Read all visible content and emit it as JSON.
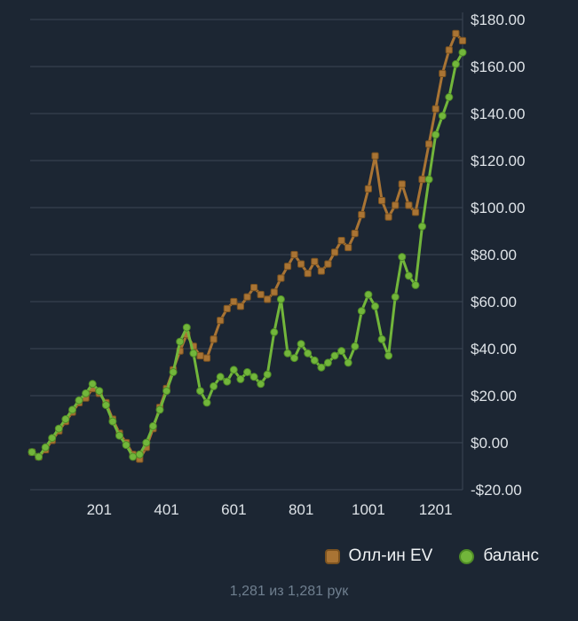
{
  "chart_data": {
    "type": "line",
    "xlim": [
      1,
      1281
    ],
    "ylim": [
      -20,
      180
    ],
    "grid": true,
    "legend_position": "bottom",
    "grid_color": "#3b4754",
    "axis_line_color": "#3b4754",
    "axis_text_color": "#dde2e7",
    "xticks": [
      201,
      401,
      601,
      801,
      1001,
      1201
    ],
    "yticks": [
      180,
      160,
      140,
      120,
      100,
      80,
      60,
      40,
      20,
      0,
      -20
    ],
    "ytick_labels": [
      "$180.00",
      "$160.00",
      "$140.00",
      "$120.00",
      "$100.00",
      "$80.00",
      "$60.00",
      "$40.00",
      "$20.00",
      "$0.00",
      "-$20.00"
    ],
    "x": [
      1,
      21,
      41,
      61,
      81,
      101,
      121,
      141,
      161,
      181,
      201,
      221,
      241,
      261,
      281,
      301,
      321,
      341,
      361,
      381,
      401,
      421,
      441,
      461,
      481,
      501,
      521,
      541,
      561,
      581,
      601,
      621,
      641,
      661,
      681,
      701,
      721,
      741,
      761,
      781,
      801,
      821,
      841,
      861,
      881,
      901,
      921,
      941,
      961,
      981,
      1001,
      1021,
      1041,
      1061,
      1081,
      1101,
      1121,
      1141,
      1161,
      1181,
      1201,
      1221,
      1241,
      1261,
      1281
    ],
    "series": [
      {
        "name": "Олл-ин EV",
        "color": "#a97434",
        "edge": "#7c5320",
        "marker": "square",
        "values": [
          -4,
          -6,
          -3,
          1,
          5,
          9,
          13,
          17,
          19,
          23,
          21,
          17,
          10,
          4,
          0,
          -5,
          -7,
          -2,
          6,
          15,
          23,
          31,
          39,
          46,
          41,
          37,
          36,
          44,
          52,
          57,
          60,
          58,
          62,
          66,
          63,
          61,
          64,
          70,
          75,
          80,
          76,
          72,
          77,
          73,
          76,
          81,
          86,
          83,
          89,
          97,
          108,
          122,
          103,
          96,
          101,
          110,
          101,
          98,
          112,
          127,
          142,
          157,
          167,
          174,
          171
        ]
      },
      {
        "name": "баланс",
        "color": "#72b63b",
        "edge": "#4e8b26",
        "marker": "circle",
        "values": [
          -4,
          -6,
          -2,
          2,
          6,
          10,
          14,
          18,
          21,
          25,
          22,
          16,
          9,
          3,
          -1,
          -6,
          -5,
          0,
          7,
          14,
          22,
          30,
          43,
          49,
          38,
          22,
          17,
          24,
          28,
          26,
          31,
          27,
          30,
          28,
          25,
          29,
          47,
          61,
          38,
          36,
          42,
          38,
          35,
          32,
          34,
          37,
          39,
          34,
          41,
          56,
          63,
          58,
          44,
          37,
          62,
          79,
          71,
          67,
          92,
          112,
          131,
          139,
          147,
          161,
          166
        ]
      }
    ]
  },
  "footer": {
    "caption": "1,281 из 1,281 рук"
  }
}
